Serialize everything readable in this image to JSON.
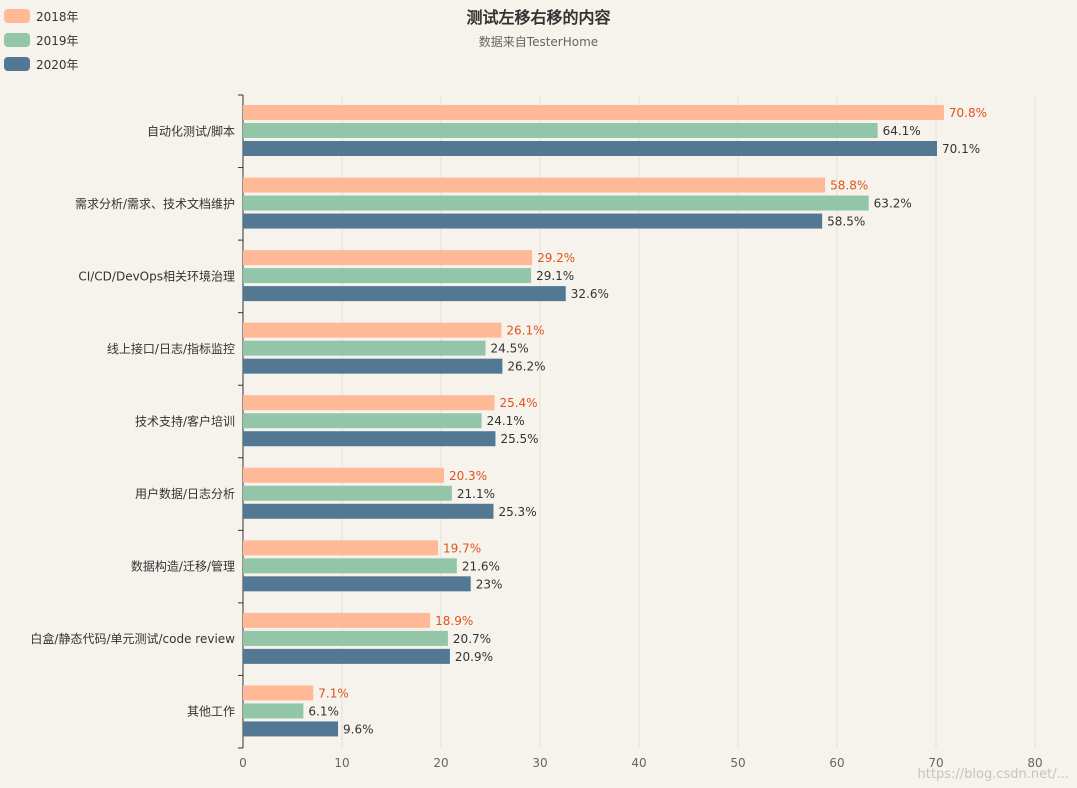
{
  "chart_data": {
    "type": "bar",
    "orientation": "horizontal",
    "title": "测试左移右移的内容",
    "subtitle": "数据来自TesterHome",
    "categories": [
      "自动化测试/脚本",
      "需求分析/需求、技术文档维护",
      "CI/CD/DevOps相关环境治理",
      "线上接口/日志/指标监控",
      "技术支持/客户培训",
      "用户数据/日志分析",
      "数据构造/迁移/管理",
      "白盒/静态代码/单元测试/code review",
      "其他工作"
    ],
    "series": [
      {
        "name": "2018年",
        "color": "#ffb997",
        "values": [
          70.8,
          58.8,
          29.2,
          26.1,
          25.4,
          20.3,
          19.7,
          18.9,
          7.1
        ],
        "labels": [
          "70.8%",
          "58.8%",
          "29.2%",
          "26.1%",
          "25.4%",
          "20.3%",
          "19.7%",
          "18.9%",
          "7.1%"
        ]
      },
      {
        "name": "2019年",
        "color": "#93c6a9",
        "values": [
          64.1,
          63.2,
          29.1,
          24.5,
          24.1,
          21.1,
          21.6,
          20.7,
          6.1
        ],
        "labels": [
          "64.1%",
          "63.2%",
          "29.1%",
          "24.5%",
          "24.1%",
          "21.1%",
          "21.6%",
          "20.7%",
          "6.1%"
        ]
      },
      {
        "name": "2020年",
        "color": "#527894",
        "values": [
          70.1,
          58.5,
          32.6,
          26.2,
          25.5,
          25.3,
          23,
          20.9,
          9.6
        ],
        "labels": [
          "70.1%",
          "58.5%",
          "32.6%",
          "26.2%",
          "25.5%",
          "25.3%",
          "23%",
          "20.9%",
          "9.6%"
        ]
      }
    ],
    "xlim": [
      0,
      80
    ],
    "xticks": [
      "0",
      "10",
      "20",
      "30",
      "40",
      "50",
      "60",
      "70",
      "80"
    ],
    "grid": true,
    "legend_position": "top-left",
    "highlight_label_color": "#e0541b",
    "label_color": "#333333"
  },
  "watermark": "https://blog.csdn.net/..."
}
